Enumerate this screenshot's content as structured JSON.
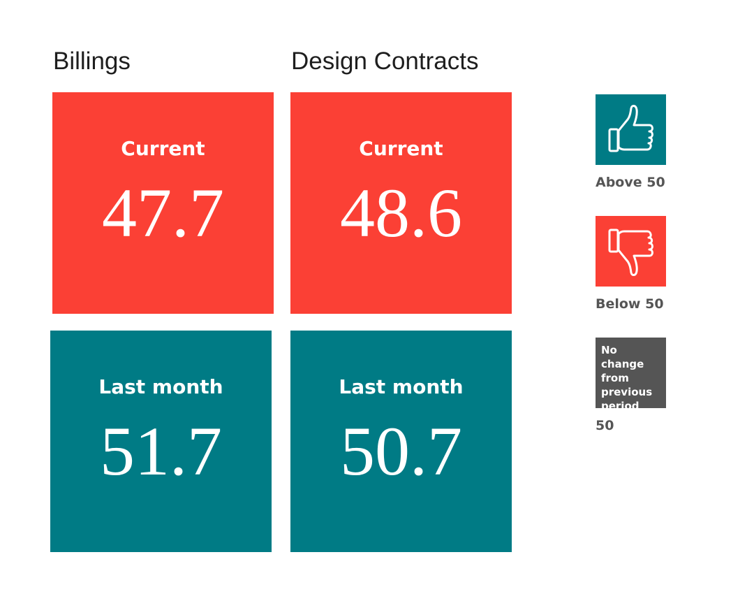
{
  "chart_data": {
    "type": "table",
    "columns": [
      "Billings",
      "Design Contracts"
    ],
    "rows": [
      "Current",
      "Last month"
    ],
    "values": {
      "Billings": {
        "Current": "47.7",
        "Last month": "51.7"
      },
      "Design Contracts": {
        "Current": "48.6",
        "Last month": "50.7"
      }
    },
    "threshold": 50
  },
  "tiles": {
    "billings_current": {
      "label": "Current",
      "value": "47.7"
    },
    "design_current": {
      "label": "Current",
      "value": "48.6"
    },
    "billings_last": {
      "label": "Last month",
      "value": "51.7"
    },
    "design_last": {
      "label": "Last month",
      "value": "50.7"
    }
  },
  "legend": {
    "above": {
      "label": "Above 50",
      "icon": "thumbs-up-icon",
      "color": "#007b85"
    },
    "below": {
      "label": "Below 50",
      "icon": "thumbs-down-icon",
      "color": "#fb4035"
    },
    "nochange": {
      "text": "No change from previous period",
      "label": "50",
      "color": "#555555"
    }
  },
  "colors": {
    "below": "#fb4035",
    "above": "#007b85",
    "neutral": "#555555"
  }
}
